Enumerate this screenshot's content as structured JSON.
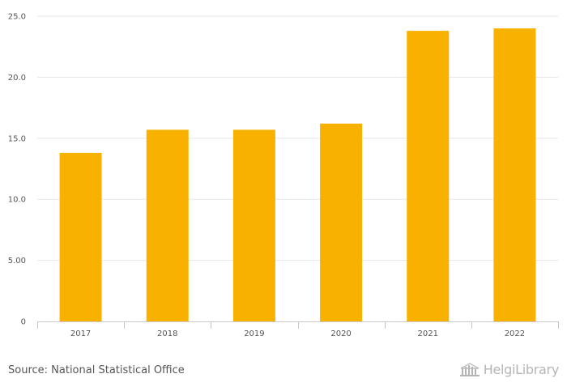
{
  "chart_data": {
    "type": "bar",
    "categories": [
      "2017",
      "2018",
      "2019",
      "2020",
      "2021",
      "2022"
    ],
    "values": [
      13.8,
      15.7,
      15.7,
      16.2,
      23.8,
      24.0
    ],
    "ylim": [
      0,
      25
    ],
    "yticks": [
      {
        "value": 0,
        "label": "0"
      },
      {
        "value": 5,
        "label": "5.00"
      },
      {
        "value": 10,
        "label": "10.0"
      },
      {
        "value": 15,
        "label": "15.0"
      },
      {
        "value": 20,
        "label": "20.0"
      },
      {
        "value": 25,
        "label": "25.0"
      }
    ],
    "bar_color": "#F9B100",
    "grid": true,
    "title": "",
    "xlabel": "",
    "ylabel": ""
  },
  "footer": {
    "source": "Source: National Statistical Office",
    "logo_text": "HelgiLibrary"
  }
}
